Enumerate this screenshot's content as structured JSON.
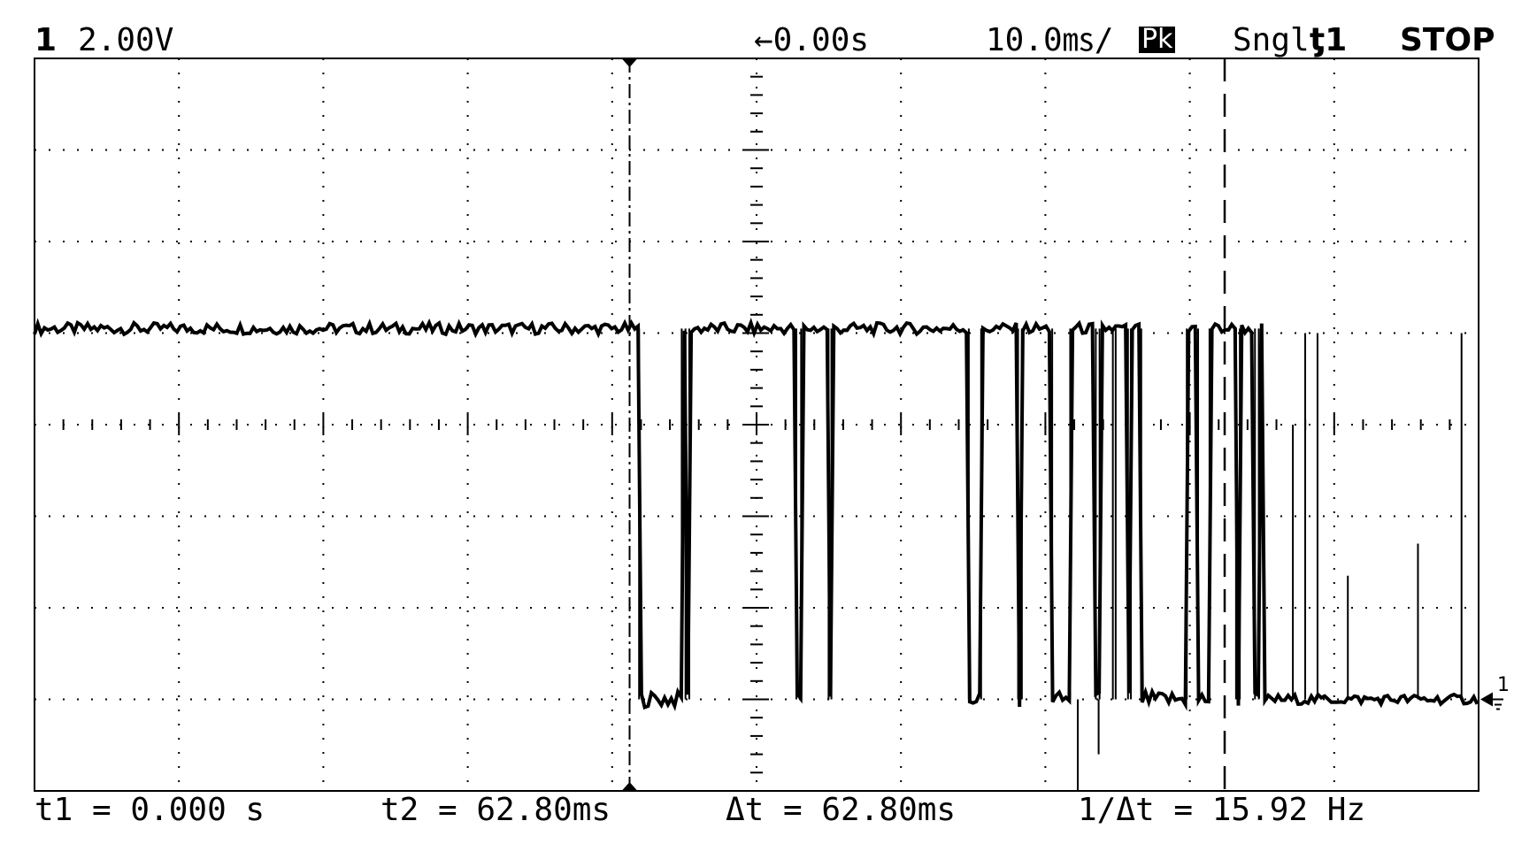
{
  "header": {
    "channel_number": "1",
    "volts_per_div": "2.00V",
    "time_offset": "←0.00s",
    "time_per_div": "10.0㎳/",
    "acq_mode": "Pk",
    "trigger_mode": "Sngl",
    "trigger_source": "ƫ1",
    "run_state": "STOP"
  },
  "footer": {
    "t1": "t1 = 0.000 s",
    "t2": "t2 = 62.80ms",
    "delta_t": "Δt = 62.80ms",
    "inv_delta_t": "1/Δt = 15.92 Hz"
  },
  "ground_marker": "1",
  "chart_data": {
    "type": "line",
    "xlim": [
      -62.8,
      89.6
    ],
    "ylim": [
      -16,
      0
    ],
    "x_units": "ms",
    "y_units": "V",
    "grid": true,
    "grid_divisions": {
      "x": 10,
      "y": 8
    },
    "cursors": {
      "t1_ms": 0.0,
      "t2_ms": 62.8
    },
    "series": [
      {
        "levels": {
          "high": -5.9,
          "low": -14.0
        },
        "pulses_low": [
          [
            1.0,
            5.5
          ],
          [
            5.9,
            6.3
          ],
          [
            17.6,
            18.1
          ],
          [
            21.0,
            21.3
          ],
          [
            35.8,
            37.1
          ],
          [
            41.0,
            41.4
          ],
          [
            44.6,
            46.5
          ],
          [
            49.2,
            49.6
          ],
          [
            51.0,
            51.3
          ],
          [
            52.6,
            52.9
          ],
          [
            54.0,
            58.8
          ],
          [
            60.0,
            61.2
          ],
          [
            64.0,
            64.4
          ],
          [
            66.0,
            66.4
          ]
        ],
        "decay_from_ms": 67.0,
        "spikes": [
          {
            "x": 40.2,
            "y": -14.0
          },
          {
            "x": 47.3,
            "y": -16.0
          },
          {
            "x": 49.5,
            "y": -15.2
          },
          {
            "x": 70.0,
            "y": -8.0
          },
          {
            "x": 71.3,
            "y": -6.0
          },
          {
            "x": 72.6,
            "y": -6.0
          },
          {
            "x": 75.8,
            "y": -11.3
          },
          {
            "x": 83.2,
            "y": -10.6
          },
          {
            "x": 87.8,
            "y": -6.0
          }
        ]
      }
    ]
  }
}
